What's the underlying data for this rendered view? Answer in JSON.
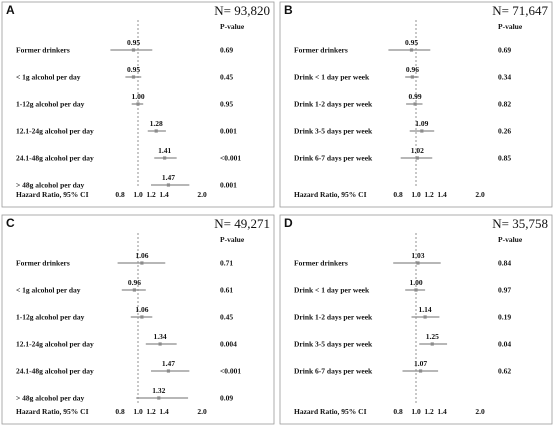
{
  "chart_data": [
    {
      "type": "forest",
      "panel": "A",
      "n_label": "N= 93,820",
      "pvalue_header": "P-value",
      "axis_label": "Hazard Ratio, 95% CI",
      "xticks": [
        "0.8",
        "1.0",
        "1.2",
        "1.4",
        "2.0"
      ],
      "reference_line": 1.0,
      "rows": [
        {
          "label": "Former drinkers",
          "hr": 0.95,
          "hr_label": "0.95",
          "lower": 0.72,
          "upper": 1.22,
          "p": "0.69"
        },
        {
          "label": "< 1g alcohol per day",
          "hr": 0.95,
          "hr_label": "0.95",
          "lower": 0.86,
          "upper": 1.05,
          "p": "0.45"
        },
        {
          "label": "1-12g alcohol per day",
          "hr": 1.0,
          "hr_label": "1.00",
          "lower": 0.93,
          "upper": 1.08,
          "p": "0.95"
        },
        {
          "label": "12.1-24g alcohol per day",
          "hr": 1.28,
          "hr_label": "1.28",
          "lower": 1.15,
          "upper": 1.43,
          "p": "0.001"
        },
        {
          "label": "24.1-48g alcohol per day",
          "hr": 1.41,
          "hr_label": "1.41",
          "lower": 1.25,
          "upper": 1.6,
          "p": "<0.001"
        },
        {
          "label": "> 48g alcohol per day",
          "hr": 1.47,
          "hr_label": "1.47",
          "lower": 1.2,
          "upper": 1.8,
          "p": "0.001"
        }
      ]
    },
    {
      "type": "forest",
      "panel": "B",
      "n_label": "N= 71,647",
      "pvalue_header": "P-value",
      "axis_label": "Hazard Ratio, 95% CI",
      "xticks": [
        "0.8",
        "1.0",
        "1.2",
        "1.4",
        "2.0"
      ],
      "reference_line": 1.0,
      "rows": [
        {
          "label": "Former drinkers",
          "hr": 0.95,
          "hr_label": "0.95",
          "lower": 0.72,
          "upper": 1.22,
          "p": "0.69"
        },
        {
          "label": "Drink < 1 day per week",
          "hr": 0.96,
          "hr_label": "0.96",
          "lower": 0.88,
          "upper": 1.04,
          "p": "0.34"
        },
        {
          "label": "Drink 1-2 days per week",
          "hr": 0.99,
          "hr_label": "0.99",
          "lower": 0.89,
          "upper": 1.1,
          "p": "0.82"
        },
        {
          "label": "Drink 3-5 days per week",
          "hr": 1.09,
          "hr_label": "1.09",
          "lower": 0.93,
          "upper": 1.28,
          "p": "0.26"
        },
        {
          "label": "Drink 6-7 days per week",
          "hr": 1.02,
          "hr_label": "1.02",
          "lower": 0.83,
          "upper": 1.25,
          "p": "0.85"
        }
      ]
    },
    {
      "type": "forest",
      "panel": "C",
      "n_label": "N= 49,271",
      "pvalue_header": "P-value",
      "axis_label": "Hazard Ratio, 95% CI",
      "xticks": [
        "0.8",
        "1.0",
        "1.2",
        "1.4",
        "2.0"
      ],
      "reference_line": 1.0,
      "rows": [
        {
          "label": "Former drinkers",
          "hr": 1.06,
          "hr_label": "1.06",
          "lower": 0.78,
          "upper": 1.42,
          "p": "0.71"
        },
        {
          "label": "< 1g alcohol per day",
          "hr": 0.96,
          "hr_label": "0.96",
          "lower": 0.82,
          "upper": 1.12,
          "p": "0.61"
        },
        {
          "label": "1-12g alcohol per day",
          "hr": 1.06,
          "hr_label": "1.06",
          "lower": 0.92,
          "upper": 1.22,
          "p": "0.45"
        },
        {
          "label": "12.1-24g alcohol per day",
          "hr": 1.34,
          "hr_label": "1.34",
          "lower": 1.12,
          "upper": 1.6,
          "p": "0.004"
        },
        {
          "label": "24.1-48g alcohol per day",
          "hr": 1.47,
          "hr_label": "1.47",
          "lower": 1.2,
          "upper": 1.8,
          "p": "<0.001"
        },
        {
          "label": "> 48g alcohol per day",
          "hr": 1.32,
          "hr_label": "1.32",
          "lower": 0.98,
          "upper": 1.78,
          "p": "0.09"
        }
      ]
    },
    {
      "type": "forest",
      "panel": "D",
      "n_label": "N= 35,758",
      "pvalue_header": "P-value",
      "axis_label": "Hazard Ratio, 95% CI",
      "xticks": [
        "0.8",
        "1.0",
        "1.2",
        "1.4",
        "2.0"
      ],
      "reference_line": 1.0,
      "rows": [
        {
          "label": "Former drinkers",
          "hr": 1.03,
          "hr_label": "1.03",
          "lower": 0.76,
          "upper": 1.38,
          "p": "0.84"
        },
        {
          "label": "Drink < 1 day per week",
          "hr": 1.0,
          "hr_label": "1.00",
          "lower": 0.88,
          "upper": 1.14,
          "p": "0.97"
        },
        {
          "label": "Drink 1-2 days per week",
          "hr": 1.14,
          "hr_label": "1.14",
          "lower": 0.95,
          "upper": 1.36,
          "p": "0.19"
        },
        {
          "label": "Drink 3-5 days per week",
          "hr": 1.25,
          "hr_label": "1.25",
          "lower": 1.05,
          "upper": 1.48,
          "p": "0.04"
        },
        {
          "label": "Drink 6-7 days per week",
          "hr": 1.07,
          "hr_label": "1.07",
          "lower": 0.85,
          "upper": 1.34,
          "p": "0.62"
        }
      ]
    }
  ]
}
